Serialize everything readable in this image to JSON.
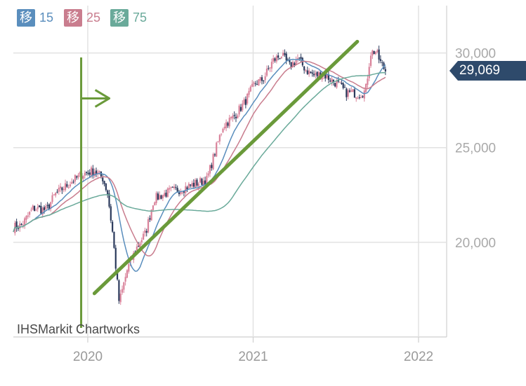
{
  "legend": [
    {
      "tag": "移",
      "period": "15",
      "color": "#5a8ebd"
    },
    {
      "tag": "移",
      "period": "25",
      "color": "#c97d8e"
    },
    {
      "tag": "移",
      "period": "75",
      "color": "#6aaa9a"
    }
  ],
  "credit": "IHSMarkit Chartworks",
  "last_price_label": "29,069",
  "colors": {
    "up_candle": "#d9829a",
    "down_candle": "#2b3a5c",
    "ma15": "#5a8ebd",
    "ma25": "#c97d8e",
    "ma75": "#6aaa9a",
    "annotation": "#6a9a3a",
    "price_tag": "#2e4a6b",
    "grid": "#e2e2e2"
  },
  "chart_data": {
    "type": "candlestick",
    "ylim": [
      15000,
      32500
    ],
    "y_ticks": [
      {
        "value": 20000,
        "label": "20,000"
      },
      {
        "value": 25000,
        "label": "25,000"
      },
      {
        "value": 30000,
        "label": "30,000"
      }
    ],
    "x_ticks": [
      {
        "value": 2020.0,
        "label": "2020"
      },
      {
        "value": 2021.0,
        "label": "2021"
      },
      {
        "value": 2022.0,
        "label": "2022"
      }
    ],
    "xlim": [
      2019.55,
      2022.17
    ],
    "approx_close_path": [
      [
        2019.55,
        20800
      ],
      [
        2019.6,
        20900
      ],
      [
        2019.67,
        21800
      ],
      [
        2019.75,
        21700
      ],
      [
        2019.8,
        22500
      ],
      [
        2019.9,
        23200
      ],
      [
        2019.97,
        23600
      ],
      [
        2020.04,
        23800
      ],
      [
        2020.09,
        23400
      ],
      [
        2020.12,
        22600
      ],
      [
        2020.15,
        20500
      ],
      [
        2020.19,
        16800
      ],
      [
        2020.24,
        18600
      ],
      [
        2020.3,
        19800
      ],
      [
        2020.35,
        20500
      ],
      [
        2020.4,
        22300
      ],
      [
        2020.45,
        22500
      ],
      [
        2020.5,
        22700
      ],
      [
        2020.56,
        22800
      ],
      [
        2020.62,
        23000
      ],
      [
        2020.68,
        23200
      ],
      [
        2020.72,
        23300
      ],
      [
        2020.77,
        24800
      ],
      [
        2020.82,
        26200
      ],
      [
        2020.88,
        26600
      ],
      [
        2020.95,
        27400
      ],
      [
        2021.01,
        28400
      ],
      [
        2021.06,
        28600
      ],
      [
        2021.12,
        29600
      ],
      [
        2021.17,
        29900
      ],
      [
        2021.22,
        29300
      ],
      [
        2021.27,
        29700
      ],
      [
        2021.32,
        29100
      ],
      [
        2021.37,
        28800
      ],
      [
        2021.42,
        28900
      ],
      [
        2021.47,
        28600
      ],
      [
        2021.52,
        28300
      ],
      [
        2021.56,
        27900
      ],
      [
        2021.6,
        27900
      ],
      [
        2021.64,
        27800
      ],
      [
        2021.68,
        28000
      ],
      [
        2021.71,
        30000
      ],
      [
        2021.74,
        30100
      ],
      [
        2021.77,
        29500
      ],
      [
        2021.8,
        29069
      ]
    ],
    "ma_periods": [
      15,
      25,
      75
    ],
    "annotations": {
      "vertical_line_x": 2019.96,
      "arrow_from_x": 2019.96,
      "arrow_to_x": 2020.13,
      "arrow_y": 27600,
      "trendline": [
        [
          2020.04,
          17300
        ],
        [
          2021.63,
          30600
        ]
      ]
    }
  }
}
